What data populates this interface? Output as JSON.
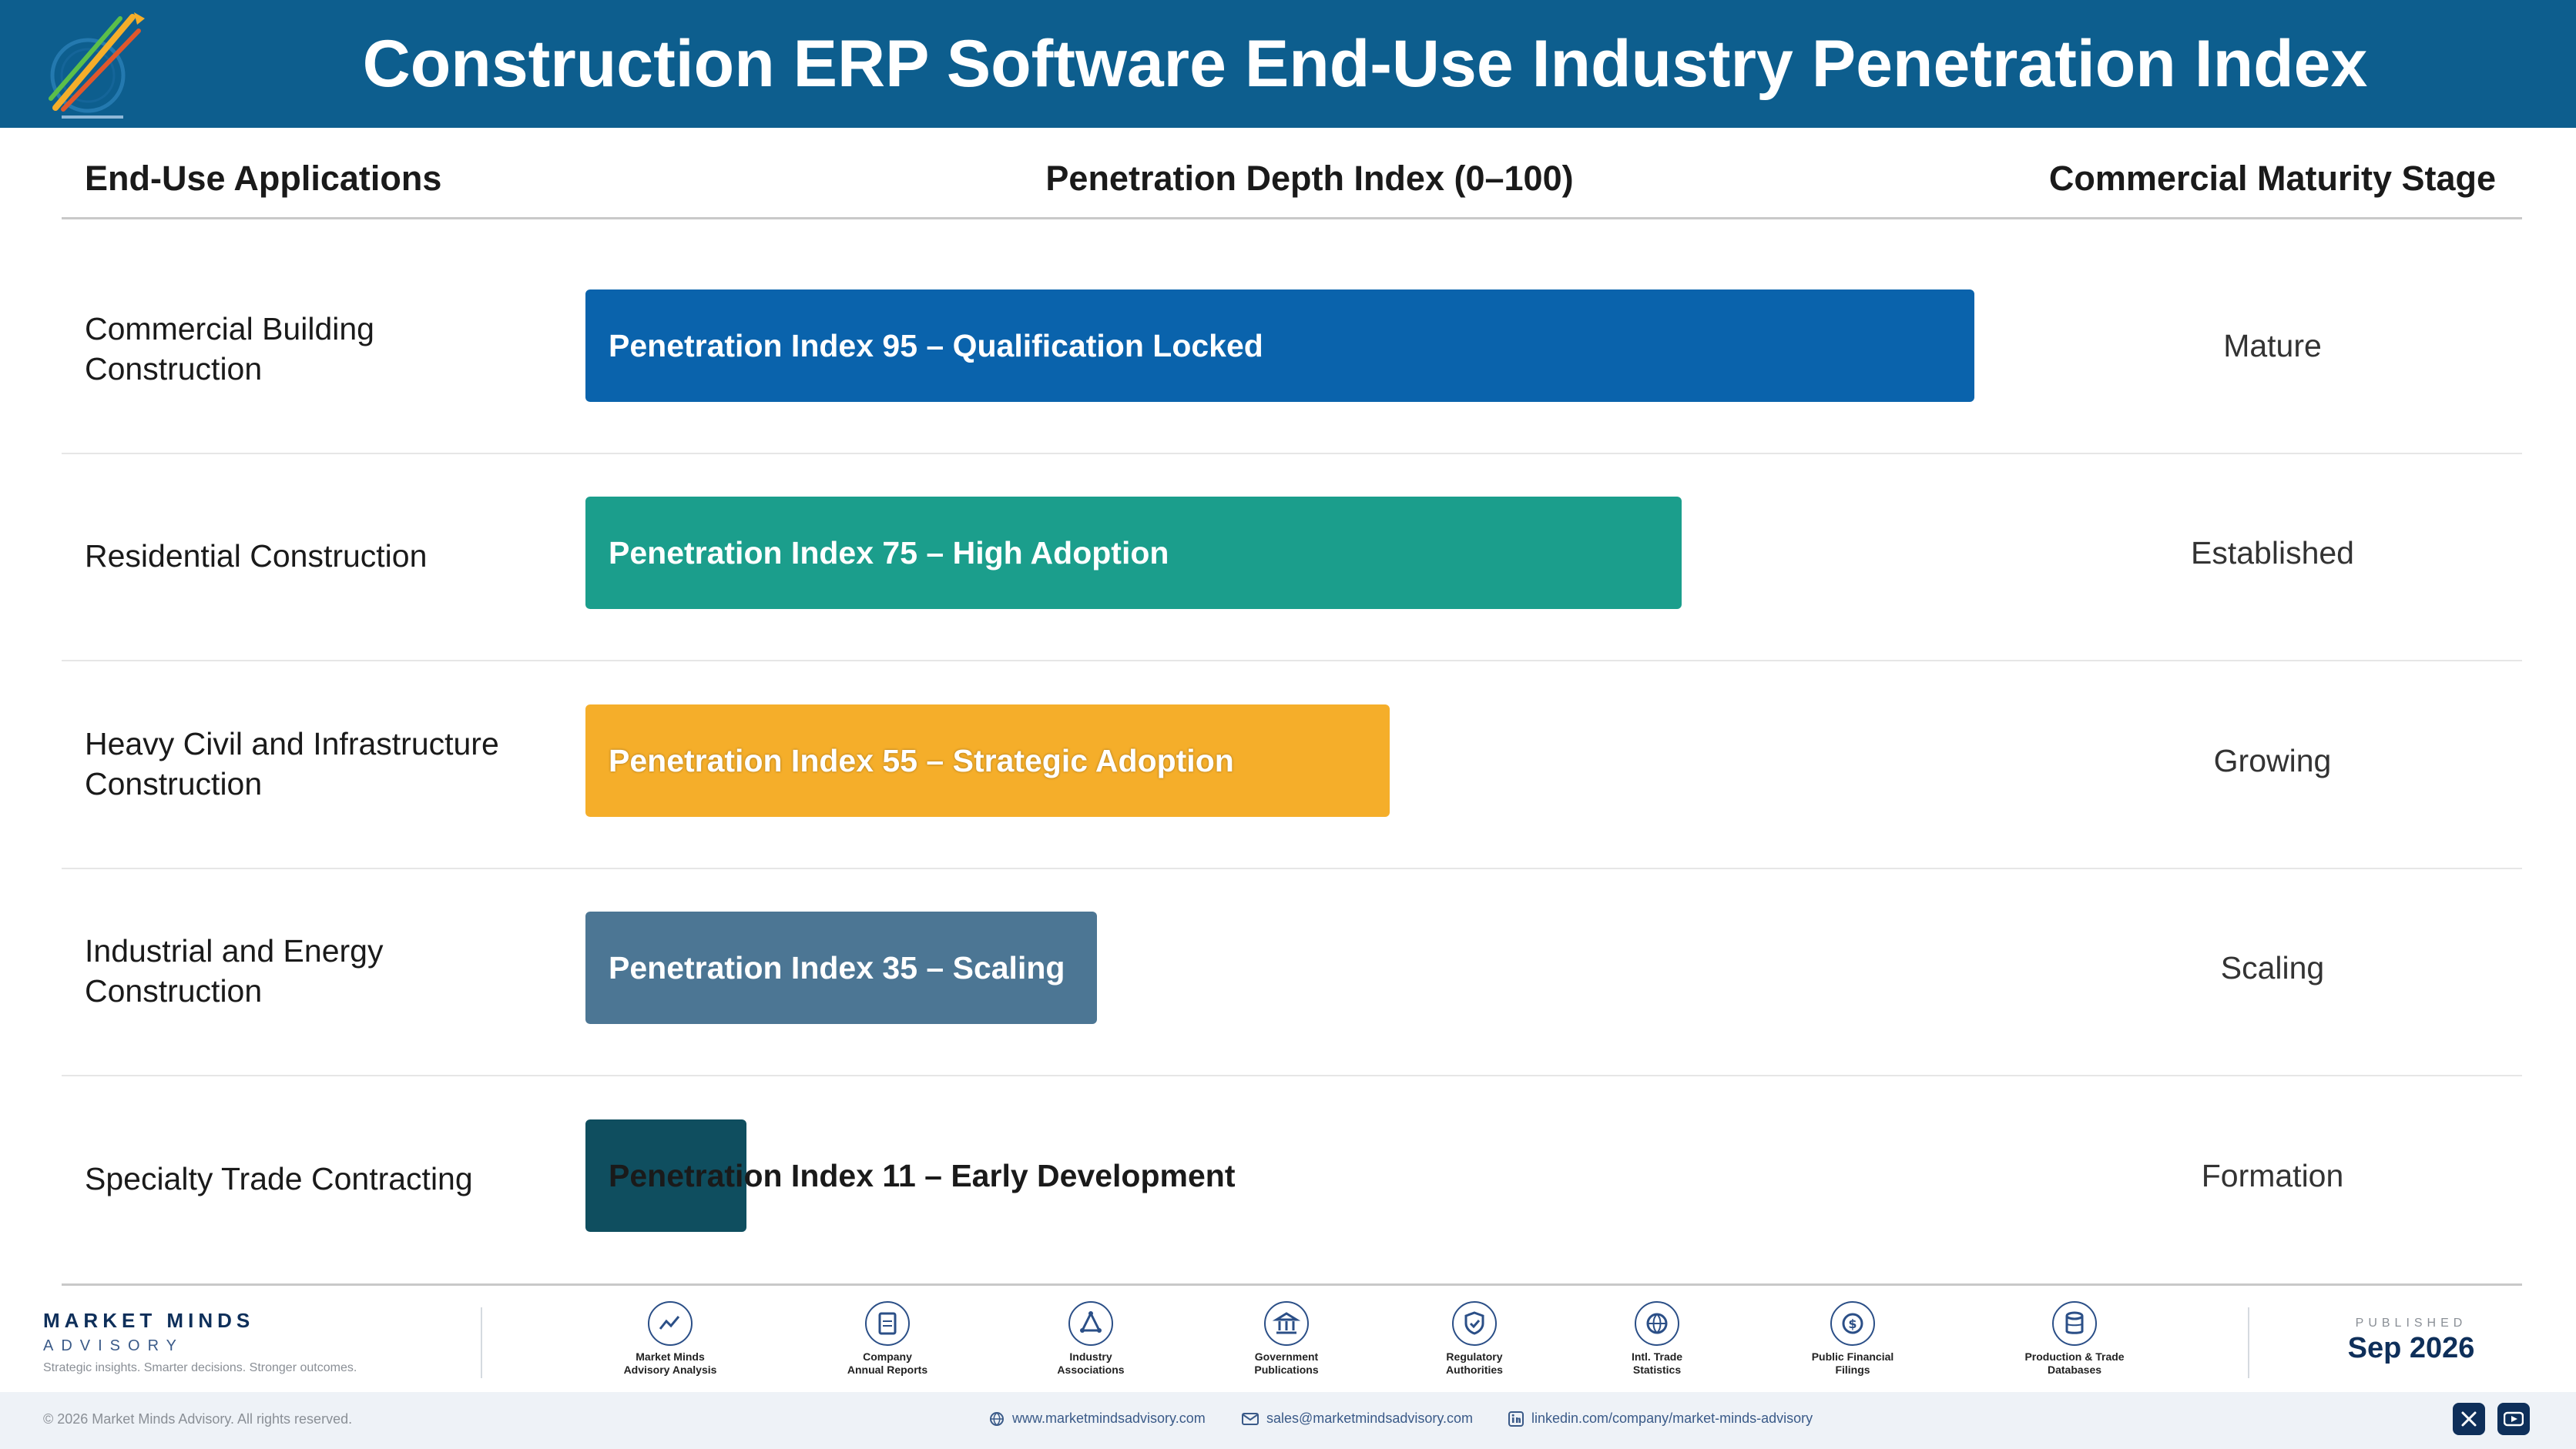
{
  "header": {
    "title": "Construction ERP Software End-Use Industry Penetration Index"
  },
  "columns": {
    "applications": "End-Use Applications",
    "index": "Penetration Depth Index (0–100)",
    "stage": "Commercial Maturity Stage"
  },
  "chart_data": {
    "type": "bar",
    "orientation": "horizontal",
    "xlim": [
      0,
      100
    ],
    "categories": [
      "Commercial Building Construction",
      "Residential Construction",
      "Heavy Civil and Infrastructure Construction",
      "Industrial and Energy Construction",
      "Specialty Trade Contracting"
    ],
    "values": [
      95,
      75,
      55,
      35,
      11
    ],
    "bar_labels": [
      "Penetration Index 95 – Qualification Locked",
      "Penetration Index 75 – High Adoption",
      "Penetration Index 55 – Strategic Adoption",
      "Penetration Index 35 – Scaling",
      "Penetration Index 11 – Early Development"
    ],
    "stages": [
      "Mature",
      "Established",
      "Growing",
      "Scaling",
      "Formation"
    ],
    "colors": [
      "#0a63ac",
      "#1b9e8c",
      "#f5ae2a",
      "#4c7694",
      "#0f4e5f"
    ]
  },
  "footer": {
    "brand_name": "MARKET MINDS",
    "brand_sub": "ADVISORY",
    "brand_tagline": "Strategic insights. Smarter decisions. Stronger outcomes.",
    "sources": [
      {
        "label": "Market Minds\nAdvisory Analysis",
        "icon": "chart-line-icon"
      },
      {
        "label": "Company\nAnnual Reports",
        "icon": "document-icon"
      },
      {
        "label": "Industry\nAssociations",
        "icon": "network-icon"
      },
      {
        "label": "Government\nPublications",
        "icon": "government-building-icon"
      },
      {
        "label": "Regulatory\nAuthorities",
        "icon": "shield-check-icon"
      },
      {
        "label": "Intl. Trade\nStatistics",
        "icon": "globe-icon"
      },
      {
        "label": "Public Financial\nFilings",
        "icon": "dollar-coin-icon"
      },
      {
        "label": "Production & Trade\nDatabases",
        "icon": "database-icon"
      }
    ],
    "published_label": "PUBLISHED",
    "published_date": "Sep 2026",
    "copyright": "© 2026 Market Minds Advisory. All rights reserved.",
    "website": "www.marketmindsadvisory.com",
    "email": "sales@marketmindsadvisory.com",
    "linkedin": "linkedin.com/company/market-minds-advisory"
  }
}
